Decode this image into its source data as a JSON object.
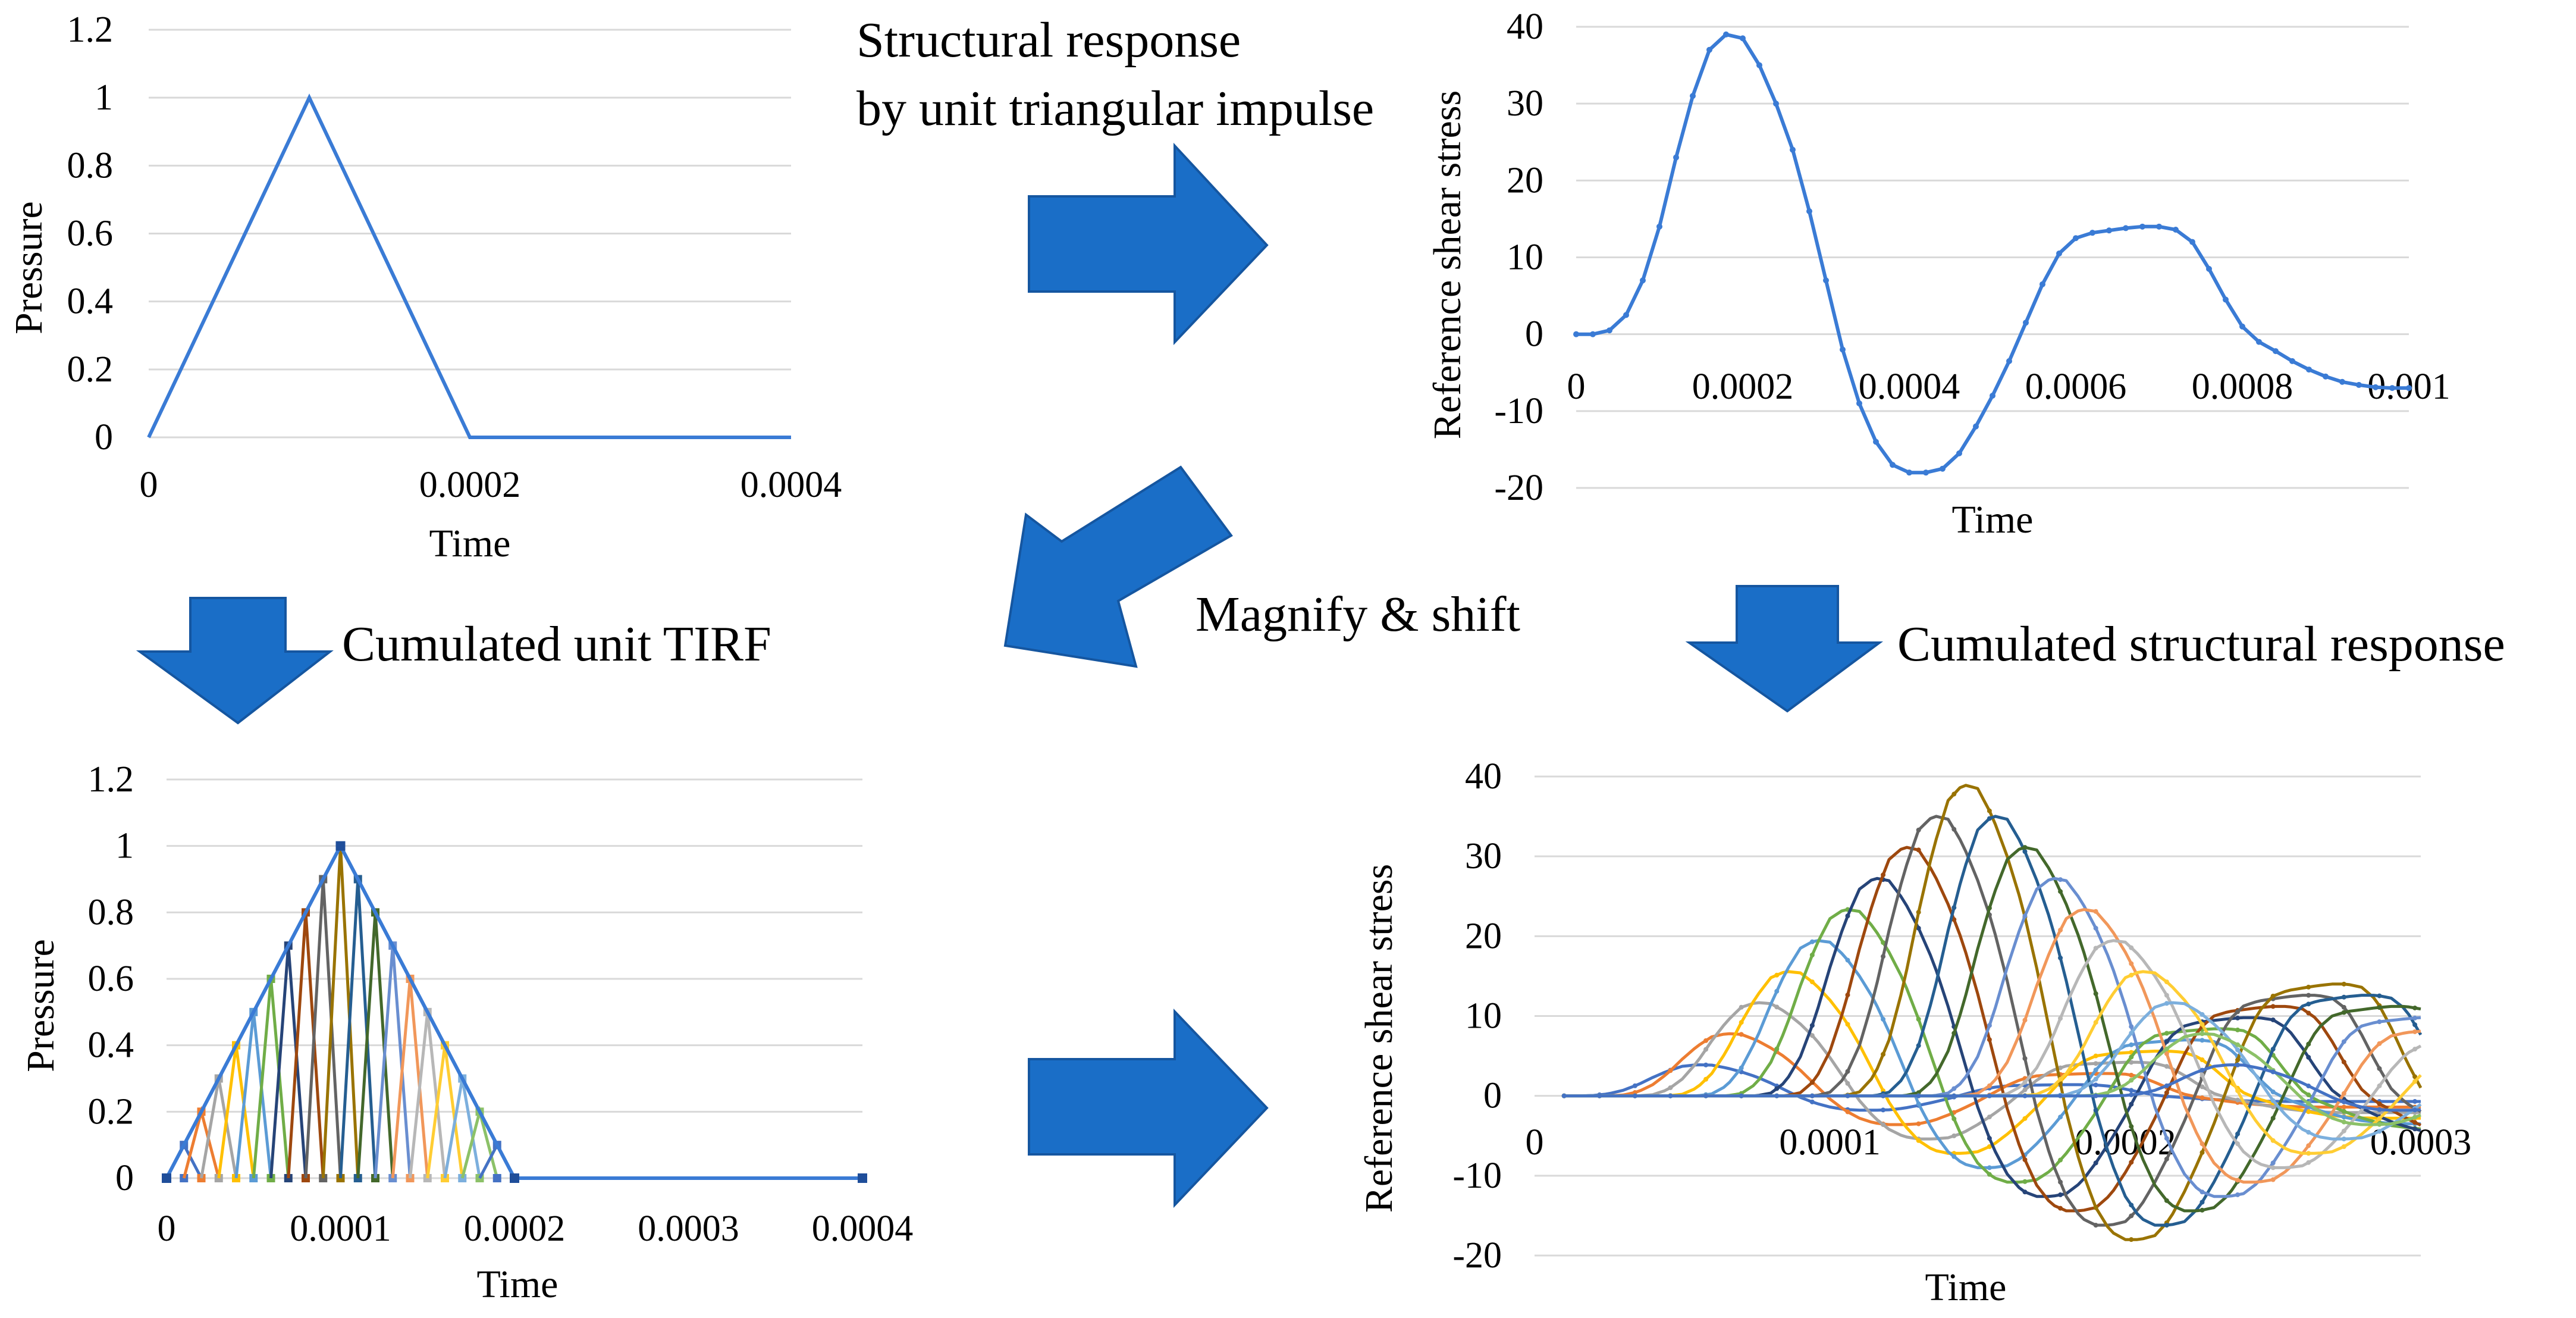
{
  "colors": {
    "main_line": "#3a7bd5",
    "arrow_fill": "#1a6ec7",
    "arrow_stroke": "#1556a0",
    "grid": "#d9d9d9",
    "series_palette": [
      "#4472c4",
      "#ed7d31",
      "#a5a5a5",
      "#ffc000",
      "#5b9bd5",
      "#70ad47",
      "#264478",
      "#9e480e",
      "#636363",
      "#997300",
      "#255e91",
      "#43682b",
      "#698ed0",
      "#f1975a",
      "#b7b7b7",
      "#ffcd33",
      "#7cafdd",
      "#8cc168"
    ]
  },
  "captions": {
    "structural_response_line1": "Structural response",
    "structural_response_line2": "by unit triangular impulse",
    "cumulated_tirf": "Cumulated unit TIRF",
    "magnify_shift": "Magnify & shift",
    "cumulated_structural": "Cumulated structural response"
  },
  "arrows": [
    {
      "name": "arrow-right-top",
      "direction": "right"
    },
    {
      "name": "arrow-down-left",
      "direction": "down"
    },
    {
      "name": "arrow-diagonal",
      "direction": "down-left"
    },
    {
      "name": "arrow-down-right",
      "direction": "down"
    },
    {
      "name": "arrow-right-bottom",
      "direction": "right"
    }
  ],
  "chart_data": [
    {
      "id": "unit-triangular-impulse",
      "type": "line",
      "title": "",
      "xlabel": "Time",
      "ylabel": "Pressure",
      "xlim": [
        0,
        0.0004
      ],
      "ylim": [
        0,
        1.2
      ],
      "xticks": [
        "0",
        "0.0002",
        "0.0004"
      ],
      "yticks": [
        "0",
        "0.2",
        "0.4",
        "0.6",
        "0.8",
        "1",
        "1.2"
      ],
      "series": [
        {
          "name": "pressure",
          "x": [
            0,
            0.0001,
            0.0002,
            0.0004
          ],
          "y": [
            0,
            1,
            0,
            0
          ]
        }
      ]
    },
    {
      "id": "structural-response",
      "type": "line",
      "title": "",
      "xlabel": "Time",
      "ylabel": "Reference shear stress",
      "xlim": [
        0,
        0.001
      ],
      "ylim": [
        -20,
        40
      ],
      "xticks": [
        "0",
        "0.0002",
        "0.0004",
        "0.0006",
        "0.0008",
        "0.001"
      ],
      "yticks": [
        "-20",
        "-10",
        "0",
        "10",
        "20",
        "30",
        "40"
      ],
      "series": [
        {
          "name": "shear stress",
          "x": [
            0,
            2e-05,
            4e-05,
            6e-05,
            8e-05,
            0.0001,
            0.00012,
            0.00014,
            0.00016,
            0.00018,
            0.0002,
            0.00022,
            0.00024,
            0.00026,
            0.00028,
            0.0003,
            0.00032,
            0.00034,
            0.00036,
            0.00038,
            0.0004,
            0.00042,
            0.00044,
            0.00046,
            0.00048,
            0.0005,
            0.00052,
            0.00054,
            0.00056,
            0.00058,
            0.0006,
            0.00062,
            0.00064,
            0.00066,
            0.00068,
            0.0007,
            0.00072,
            0.00074,
            0.00076,
            0.00078,
            0.0008,
            0.00082,
            0.00084,
            0.00086,
            0.00088,
            0.0009,
            0.00092,
            0.00094,
            0.00096,
            0.00098,
            0.001
          ],
          "y": [
            0,
            0,
            0.5,
            2.5,
            7,
            14,
            23,
            31,
            37,
            39,
            38.5,
            35,
            30,
            24,
            16,
            7,
            -2,
            -9,
            -14,
            -17,
            -18,
            -18,
            -17.5,
            -15.5,
            -12,
            -8,
            -3.5,
            1.5,
            6.5,
            10.5,
            12.5,
            13.2,
            13.5,
            13.8,
            14,
            14,
            13.6,
            12,
            8.5,
            4.5,
            1,
            -1,
            -2.2,
            -3.5,
            -4.6,
            -5.5,
            -6.2,
            -6.6,
            -6.9,
            -7,
            -7
          ]
        }
      ]
    },
    {
      "id": "cumulated-unit-tirf",
      "type": "line",
      "title": "",
      "xlabel": "Time",
      "ylabel": "Pressure",
      "xlim": [
        0,
        0.0004
      ],
      "ylim": [
        0,
        1.2
      ],
      "xticks": [
        "0",
        "0.0001",
        "0.0002",
        "0.0003",
        "0.0004"
      ],
      "yticks": [
        "0",
        "0.2",
        "0.4",
        "0.6",
        "0.8",
        "1",
        "1.2"
      ],
      "envelope": {
        "x": [
          0,
          0.0001,
          0.0002,
          0.0004
        ],
        "y": [
          0,
          1,
          0,
          0
        ]
      },
      "sub_impulses": {
        "count": 19,
        "spacing": 1e-05,
        "half_width": 1e-05
      }
    },
    {
      "id": "cumulated-structural-response",
      "type": "line",
      "title": "",
      "xlabel": "Time",
      "ylabel": "Reference shear stress",
      "xlim": [
        0,
        0.0003
      ],
      "ylim": [
        -20,
        40
      ],
      "xticks": [
        "0",
        "0.0001",
        "0.0002",
        "0.0003"
      ],
      "yticks": [
        "-20",
        "-10",
        "0",
        "10",
        "20",
        "30",
        "40"
      ],
      "scaled_responses": {
        "count": 19,
        "shift": 1e-05,
        "time_compression": 0.25
      }
    }
  ]
}
